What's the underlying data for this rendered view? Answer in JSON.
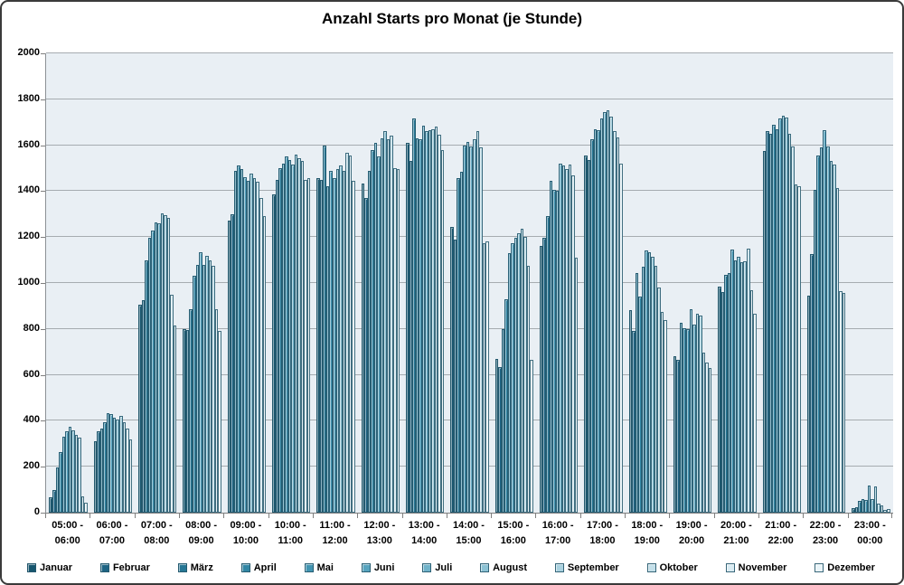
{
  "chart_data": {
    "type": "bar",
    "title": "Anzahl Starts pro Monat (je Stunde)",
    "legend_position": "bottom",
    "grid": true,
    "plot_bg": "#e9eff4",
    "gridline_color": "#a6acb0",
    "axis_color": "#7f7f7f",
    "y_axis": {
      "min": 0,
      "max": 2000,
      "step": 200
    },
    "x_axis": {
      "categories": [
        {
          "top": "05:00 -",
          "bottom": "06:00"
        },
        {
          "top": "06:00 -",
          "bottom": "07:00"
        },
        {
          "top": "07:00 -",
          "bottom": "08:00"
        },
        {
          "top": "08:00 -",
          "bottom": "09:00"
        },
        {
          "top": "09:00 -",
          "bottom": "10:00"
        },
        {
          "top": "10:00 -",
          "bottom": "11:00"
        },
        {
          "top": "11:00 -",
          "bottom": "12:00"
        },
        {
          "top": "12:00 -",
          "bottom": "13:00"
        },
        {
          "top": "13:00 -",
          "bottom": "14:00"
        },
        {
          "top": "14:00 -",
          "bottom": "15:00"
        },
        {
          "top": "15:00 -",
          "bottom": "16:00"
        },
        {
          "top": "16:00 -",
          "bottom": "17:00"
        },
        {
          "top": "17:00 -",
          "bottom": "18:00"
        },
        {
          "top": "18:00 -",
          "bottom": "19:00"
        },
        {
          "top": "19:00 -",
          "bottom": "20:00"
        },
        {
          "top": "20:00 -",
          "bottom": "21:00"
        },
        {
          "top": "21:00 -",
          "bottom": "22:00"
        },
        {
          "top": "22:00 -",
          "bottom": "23:00"
        },
        {
          "top": "23:00 -",
          "bottom": "00:00"
        }
      ]
    },
    "series": [
      {
        "name": "Januar",
        "color": "#16566f",
        "values": [
          65,
          310,
          905,
          800,
          1270,
          1385,
          1455,
          1435,
          1610,
          1245,
          670,
          1160,
          1555,
          880,
          680,
          985,
          1575,
          945,
          20
        ]
      },
      {
        "name": "Februar",
        "color": "#1d6484",
        "values": [
          100,
          355,
          925,
          795,
          1300,
          1450,
          1450,
          1370,
          1530,
          1190,
          635,
          1195,
          1535,
          790,
          665,
          960,
          1660,
          1125,
          22
        ]
      },
      {
        "name": "März",
        "color": "#267795",
        "values": [
          195,
          365,
          1100,
          885,
          1490,
          1500,
          1600,
          1490,
          1715,
          1455,
          800,
          1290,
          1625,
          1045,
          825,
          1035,
          1650,
          1405,
          50
        ]
      },
      {
        "name": "April",
        "color": "#3287a5",
        "values": [
          265,
          395,
          1195,
          1030,
          1510,
          1520,
          1420,
          1580,
          1630,
          1485,
          930,
          1445,
          1670,
          940,
          805,
          1045,
          1690,
          1555,
          60
        ]
      },
      {
        "name": "Mai",
        "color": "#4295b2",
        "values": [
          330,
          435,
          1230,
          1080,
          1495,
          1550,
          1490,
          1610,
          1625,
          1600,
          1130,
          1405,
          1665,
          1070,
          800,
          1145,
          1670,
          1590,
          55
        ]
      },
      {
        "name": "Juni",
        "color": "#57a4bf",
        "values": [
          355,
          430,
          1265,
          1135,
          1460,
          1535,
          1455,
          1550,
          1685,
          1615,
          1175,
          1400,
          1715,
          1140,
          885,
          1100,
          1715,
          1665,
          118
        ]
      },
      {
        "name": "Juli",
        "color": "#70b3ca",
        "values": [
          375,
          415,
          1260,
          1080,
          1445,
          1515,
          1495,
          1630,
          1660,
          1595,
          1195,
          1520,
          1745,
          1135,
          820,
          1115,
          1730,
          1595,
          60
        ]
      },
      {
        "name": "August",
        "color": "#8cc2d4",
        "values": [
          360,
          405,
          1305,
          1120,
          1475,
          1560,
          1510,
          1660,
          1665,
          1625,
          1215,
          1510,
          1750,
          1115,
          865,
          1090,
          1720,
          1530,
          114
        ]
      },
      {
        "name": "September",
        "color": "#a9d1df",
        "values": [
          340,
          420,
          1295,
          1100,
          1455,
          1545,
          1490,
          1625,
          1670,
          1660,
          1235,
          1495,
          1725,
          1075,
          860,
          1095,
          1650,
          1515,
          40
        ]
      },
      {
        "name": "Oktober",
        "color": "#c3dfe9",
        "values": [
          325,
          395,
          1285,
          1075,
          1440,
          1530,
          1565,
          1640,
          1680,
          1590,
          1200,
          1515,
          1660,
          980,
          695,
          1150,
          1595,
          1415,
          33
        ]
      },
      {
        "name": "November",
        "color": "#d9ebf2",
        "values": [
          70,
          365,
          950,
          885,
          1370,
          1450,
          1555,
          1500,
          1645,
          1175,
          1075,
          1470,
          1635,
          875,
          655,
          970,
          1430,
          965,
          13
        ]
      },
      {
        "name": "Dezember",
        "color": "#e9f4f8",
        "values": [
          45,
          320,
          815,
          790,
          1290,
          1455,
          1445,
          1495,
          1580,
          1180,
          665,
          1110,
          1520,
          840,
          630,
          865,
          1420,
          955,
          17
        ]
      }
    ]
  }
}
